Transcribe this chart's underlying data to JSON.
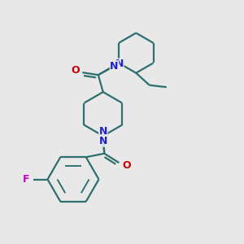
{
  "bg_color": "#e8e8e8",
  "bond_color": "#2d6e6e",
  "N_color": "#2222cc",
  "O_color": "#cc0000",
  "F_color": "#cc00cc",
  "bond_width": 1.6,
  "fig_size": [
    3.0,
    3.0
  ],
  "dpi": 100,
  "xlim": [
    0,
    10
  ],
  "ylim": [
    0,
    10
  ]
}
